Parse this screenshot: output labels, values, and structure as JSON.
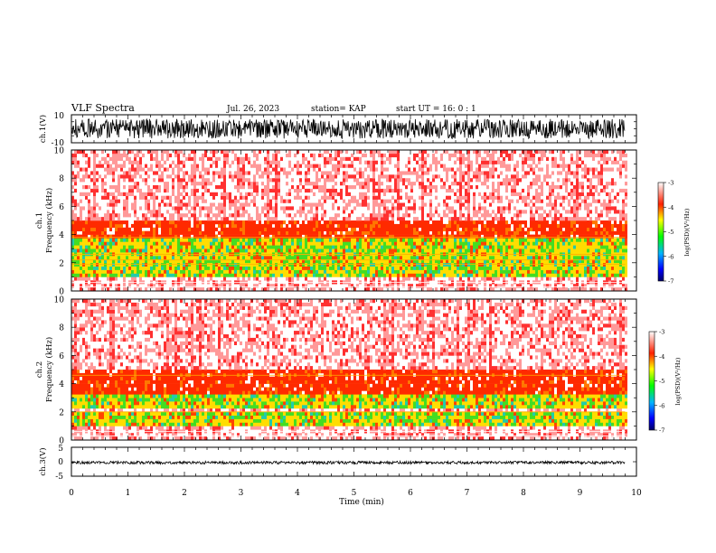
{
  "header": {
    "title": "VLF Spectra",
    "date": "Jul. 26, 2023",
    "station": "station= KAP",
    "start_ut": "start UT =  16: 0  : 1"
  },
  "panels": {
    "ch1_wave": {
      "ylabel": "ch.1(V)",
      "ymin_label": "-10",
      "ymax_label": "10"
    },
    "ch1_spec": {
      "ylabel_top": "ch.1",
      "ylabel_bottom": "Frequency (kHz)",
      "yticks": [
        "0",
        "2",
        "4",
        "6",
        "8",
        "10"
      ]
    },
    "ch2_spec": {
      "ylabel_top": "ch.2",
      "ylabel_bottom": "Frequency (kHz)",
      "yticks": [
        "0",
        "2",
        "4",
        "6",
        "8",
        "10"
      ]
    },
    "ch3_wave": {
      "ylabel": "ch.3(V)",
      "yticks": [
        "5",
        "0",
        "-5"
      ]
    },
    "xaxis": {
      "label": "Time (min)",
      "ticks": [
        "0",
        "1",
        "2",
        "3",
        "4",
        "5",
        "6",
        "7",
        "8",
        "9",
        "10"
      ]
    }
  },
  "colorbar": {
    "label": "log(PSD)(V²/Hz)",
    "ticks": [
      "-3",
      "-4",
      "-5",
      "-6",
      "-7"
    ]
  },
  "chart_data": [
    {
      "type": "line",
      "title": "VLF Spectra",
      "name": "ch.1 waveform",
      "xlabel": "Time (min)",
      "ylabel": "ch.1(V)",
      "xlim": [
        0,
        10
      ],
      "ylim": [
        -10,
        10
      ],
      "data_extent_min": 9.8,
      "amplitude_range": [
        -7,
        7
      ]
    },
    {
      "type": "heatmap",
      "name": "ch.1 spectrogram",
      "xlabel": "Time (min)",
      "ylabel": "Frequency (kHz)",
      "xlim": [
        0,
        10
      ],
      "ylim": [
        0,
        10
      ],
      "color_scale": "log(PSD) -7 to -3",
      "bands": [
        {
          "freq_range": [
            1.0,
            3.6
          ],
          "level": "high (green/yellow)"
        },
        {
          "freq_range": [
            3.6,
            5.0
          ],
          "level": "medium (red)"
        },
        {
          "freq_range": [
            5.0,
            10.0
          ],
          "level": "low (white/light red)"
        }
      ],
      "horizontal_lines_khz": [
        0.3,
        0.6,
        1.9,
        2.2,
        2.6,
        3.8
      ]
    },
    {
      "type": "heatmap",
      "name": "ch.2 spectrogram",
      "xlabel": "Time (min)",
      "ylabel": "Frequency (kHz)",
      "xlim": [
        0,
        10
      ],
      "ylim": [
        0,
        10
      ],
      "color_scale": "log(PSD) -7 to -3",
      "bands": [
        {
          "freq_range": [
            0.8,
            1.8
          ],
          "level": "high (green/yellow)"
        },
        {
          "freq_range": [
            2.2,
            3.2
          ],
          "level": "high (green)"
        },
        {
          "freq_range": [
            3.2,
            5.0
          ],
          "level": "medium (red)"
        },
        {
          "freq_range": [
            5.0,
            10.0
          ],
          "level": "low (white/light red)"
        }
      ],
      "horizontal_lines_khz": [
        0.3,
        0.6,
        2.0,
        4.6
      ]
    },
    {
      "type": "line",
      "name": "ch.3 waveform",
      "xlabel": "Time (min)",
      "ylabel": "ch.3(V)",
      "xlim": [
        0,
        10
      ],
      "ylim": [
        -5,
        5
      ],
      "data_extent_min": 9.8,
      "amplitude_range": [
        -0.8,
        0.2
      ]
    }
  ]
}
